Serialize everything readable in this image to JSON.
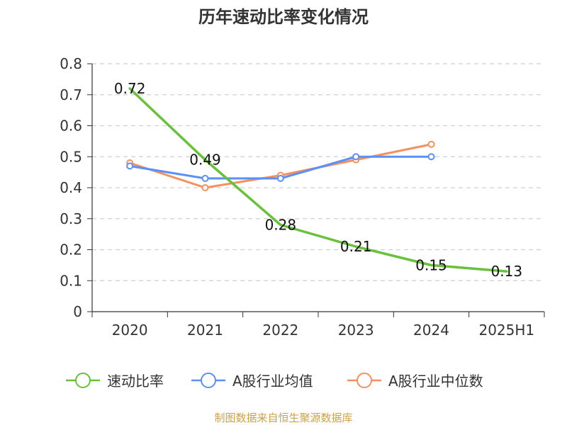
{
  "chart_data": {
    "type": "line",
    "title": "历年速动比率变化情况",
    "categories": [
      "2020",
      "2021",
      "2022",
      "2023",
      "2024",
      "2025H1"
    ],
    "yticks": [
      "0",
      "0.1",
      "0.2",
      "0.3",
      "0.4",
      "0.5",
      "0.6",
      "0.7",
      "0.8"
    ],
    "ylim": [
      0,
      0.8
    ],
    "grid": true,
    "legend_position": "bottom",
    "series": [
      {
        "name": "速动比率",
        "color": "#67c23a",
        "values": [
          0.72,
          0.49,
          0.28,
          0.21,
          0.15,
          0.13
        ],
        "labels": [
          "0.72",
          "0.49",
          "0.28",
          "0.21",
          "0.15",
          "0.13"
        ]
      },
      {
        "name": "A股行业均值",
        "color": "#5b8ff9",
        "values": [
          0.47,
          0.43,
          0.43,
          0.5,
          0.5,
          null
        ]
      },
      {
        "name": "A股行业中位数",
        "color": "#f7905c",
        "values": [
          0.48,
          0.4,
          0.44,
          0.49,
          0.54,
          null
        ]
      }
    ]
  },
  "source": "制图数据来自恒生聚源数据库"
}
